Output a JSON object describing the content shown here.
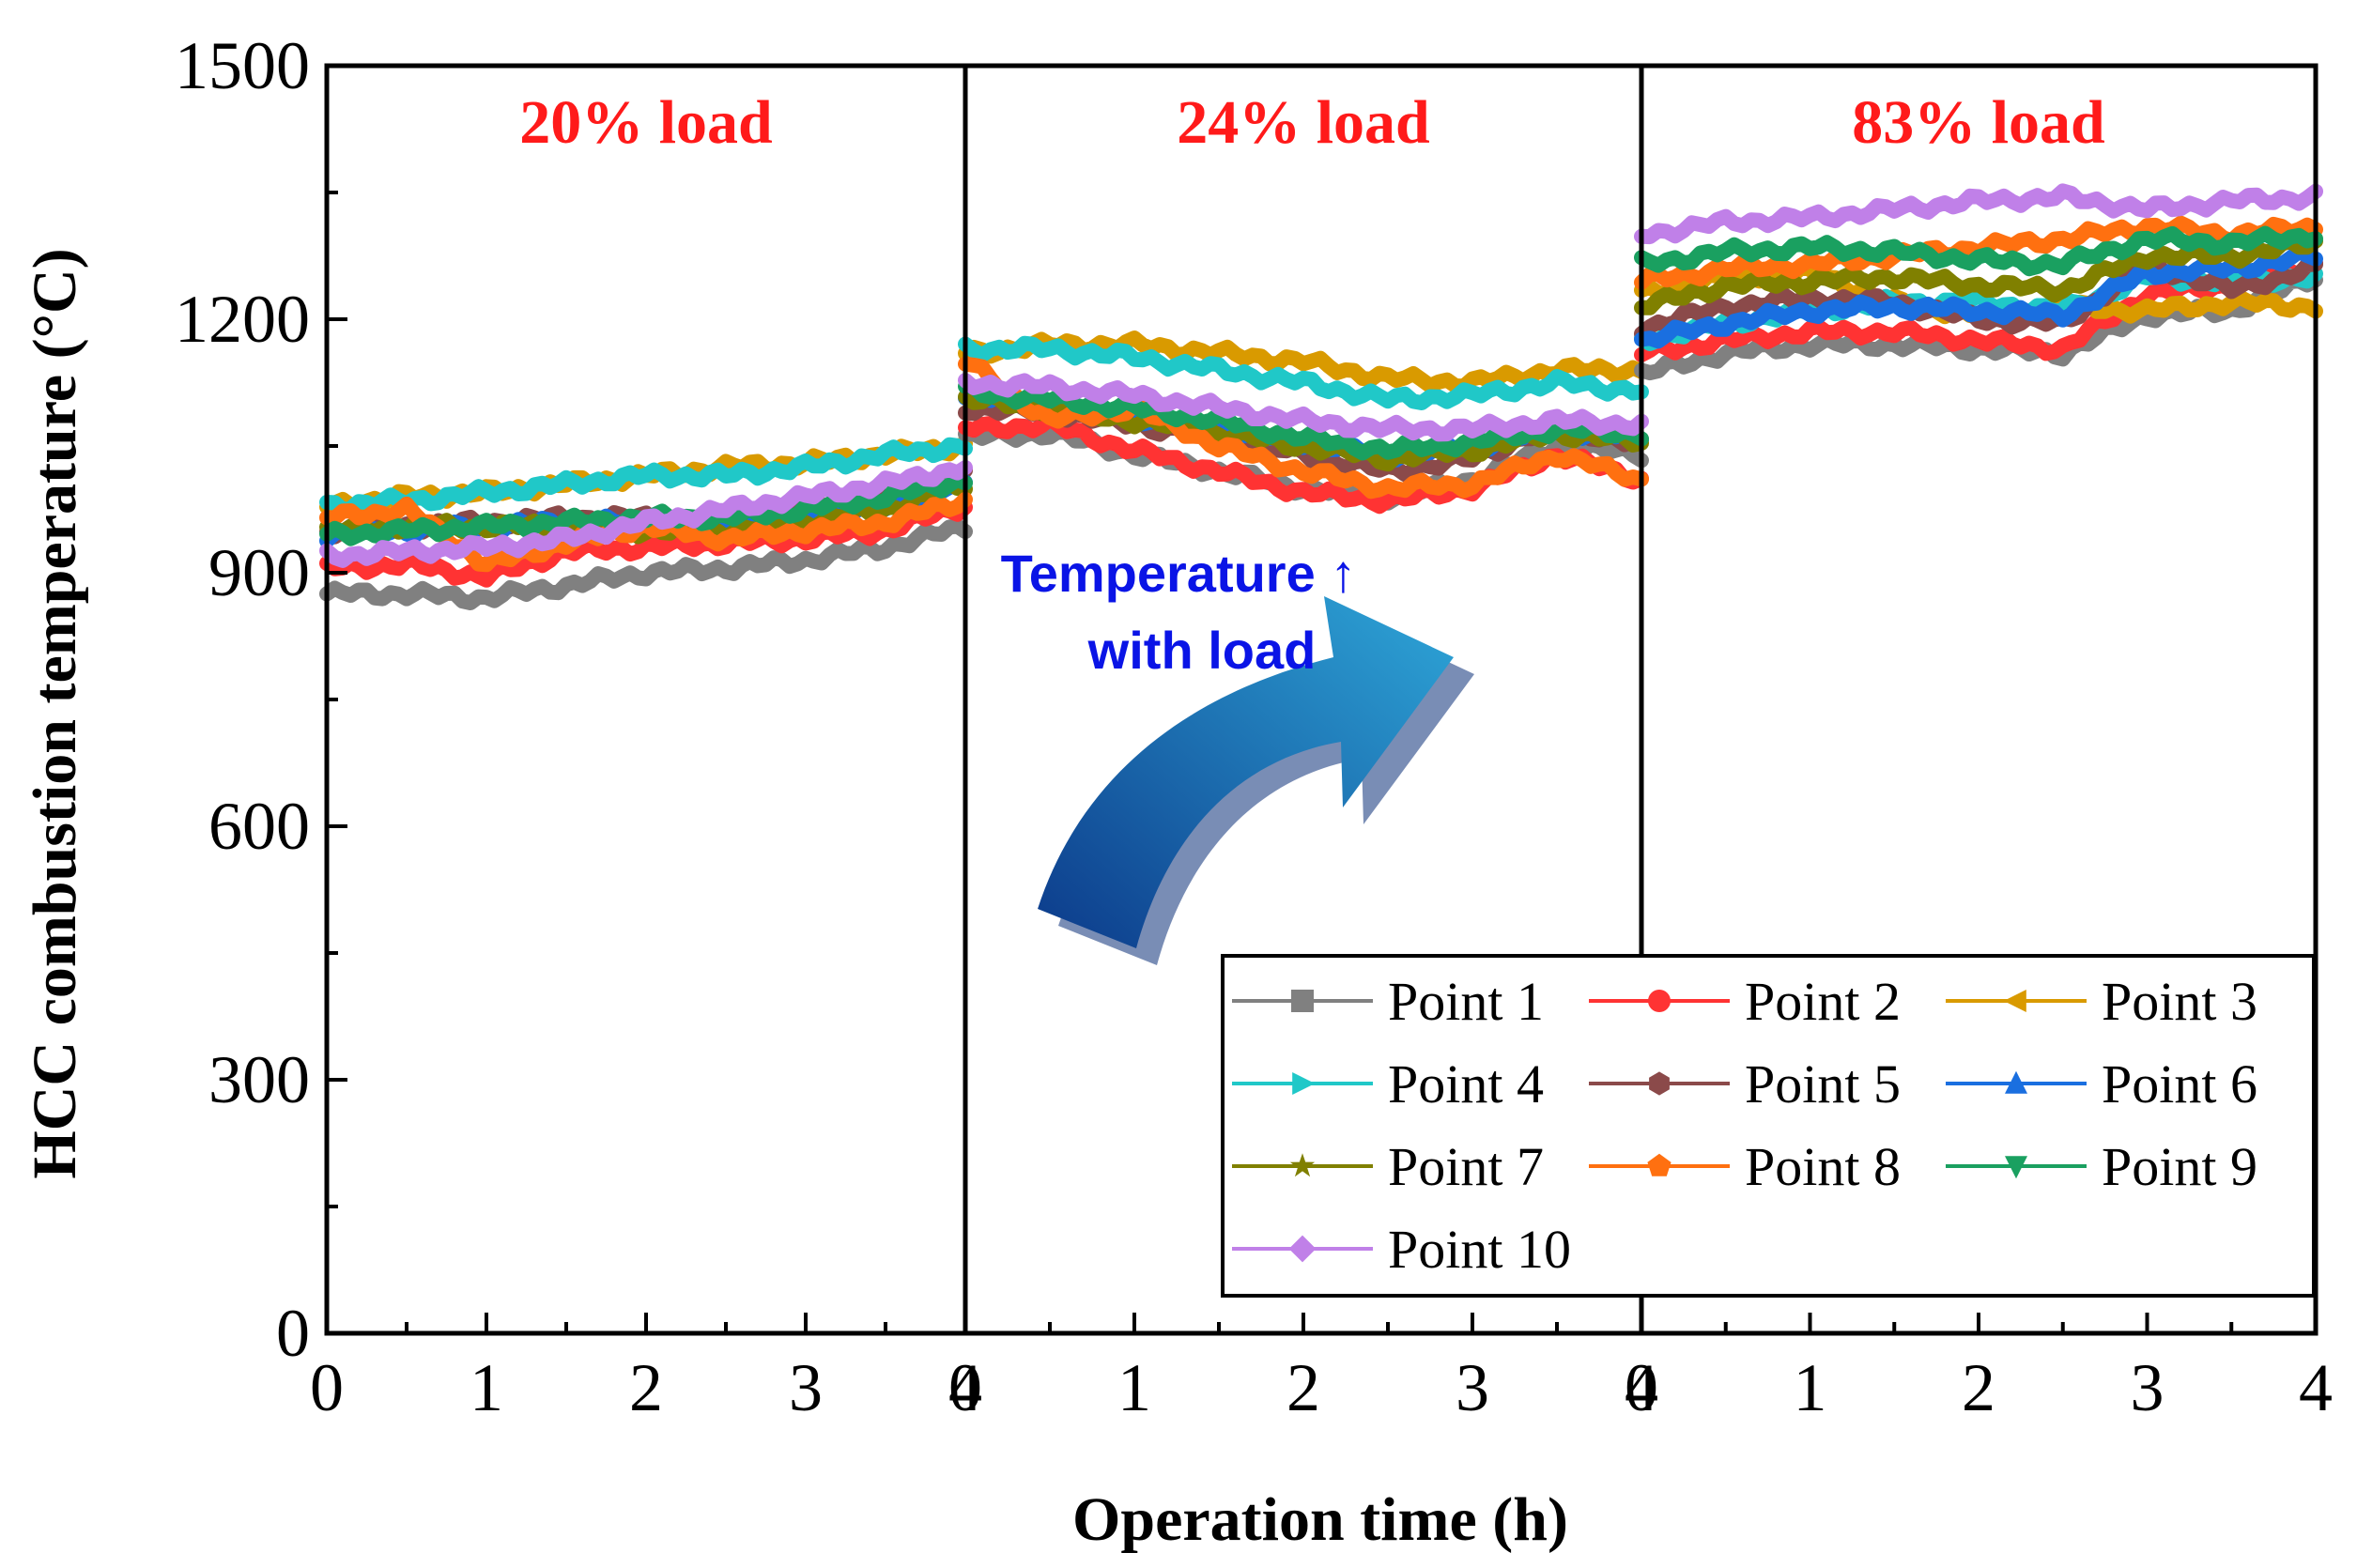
{
  "chart_data": {
    "type": "line",
    "ylabel": "HCC combustion temperature (°C)",
    "xlabel": "Operation time (h)",
    "ylim": [
      0,
      1500
    ],
    "yticks": [
      0,
      300,
      600,
      900,
      1200,
      1500
    ],
    "xlim": [
      0,
      4
    ],
    "xticks": [
      0,
      1,
      2,
      3,
      4
    ],
    "grid": false,
    "legend_position": "bottom-right",
    "annotation": {
      "lines": [
        "Temperature ↑",
        "with load"
      ],
      "color": "#0a14e6",
      "arrow_colors": [
        "#0c3a8a",
        "#2ea6d8"
      ]
    },
    "title_color": "#ff1a1a",
    "panels": [
      {
        "title": "20% load",
        "series": [
          {
            "name": "Point 1",
            "color": "#808080",
            "marker": "square",
            "x": [
              0,
              0.5,
              1,
              1.5,
              2,
              2.5,
              3,
              3.5,
              4
            ],
            "y": [
              875,
              875,
              870,
              885,
              900,
              905,
              915,
              930,
              955
            ]
          },
          {
            "name": "Point 2",
            "color": "#ff3333",
            "marker": "circle",
            "x": [
              0,
              0.5,
              1,
              1.5,
              2,
              2.5,
              3,
              3.5,
              4
            ],
            "y": [
              905,
              910,
              895,
              925,
              930,
              935,
              940,
              950,
              980
            ]
          },
          {
            "name": "Point 3",
            "color": "#d99a00",
            "marker": "triangle-left",
            "x": [
              0,
              0.5,
              1,
              1.5,
              2,
              2.5,
              3,
              3.5,
              4
            ],
            "y": [
              980,
              990,
              995,
              1005,
              1015,
              1025,
              1030,
              1040,
              1050
            ]
          },
          {
            "name": "Point 4",
            "color": "#20c8c8",
            "marker": "triangle-right",
            "x": [
              0,
              0.5,
              1,
              1.5,
              2,
              2.5,
              3,
              3.5,
              4
            ],
            "y": [
              980,
              985,
              995,
              1005,
              1015,
              1015,
              1025,
              1040,
              1050
            ]
          },
          {
            "name": "Point 5",
            "color": "#8b4a4a",
            "marker": "hexagon",
            "x": [
              0,
              0.5,
              1,
              1.5,
              2,
              2.5,
              3,
              3.5,
              4
            ],
            "y": [
              950,
              955,
              960,
              965,
              965,
              960,
              975,
              985,
              1015
            ]
          },
          {
            "name": "Point 6",
            "color": "#1a6fe0",
            "marker": "triangle-up",
            "x": [
              0,
              0.5,
              1,
              1.5,
              2,
              2.5,
              3,
              3.5,
              4
            ],
            "y": [
              945,
              950,
              955,
              960,
              960,
              955,
              965,
              980,
              1005
            ]
          },
          {
            "name": "Point 7",
            "color": "#808000",
            "marker": "star",
            "x": [
              0,
              0.5,
              1,
              1.5,
              2,
              2.5,
              3,
              3.5,
              4
            ],
            "y": [
              950,
              955,
              955,
              955,
              950,
              950,
              960,
              975,
              1005
            ]
          },
          {
            "name": "Point 8",
            "color": "#ff7010",
            "marker": "pentagon",
            "x": [
              0,
              0.5,
              1,
              1.5,
              2,
              2.5,
              3,
              3.5,
              4
            ],
            "y": [
              965,
              975,
              910,
              935,
              955,
              940,
              950,
              960,
              985
            ]
          },
          {
            "name": "Point 9",
            "color": "#1aa060",
            "marker": "triangle-down",
            "x": [
              0,
              0.5,
              1,
              1.5,
              2,
              2.5,
              3,
              3.5,
              4
            ],
            "y": [
              945,
              950,
              955,
              960,
              965,
              965,
              975,
              990,
              1010
            ]
          },
          {
            "name": "Point 10",
            "color": "#c080e8",
            "marker": "diamond",
            "x": [
              0,
              0.5,
              1,
              1.5,
              2,
              2.5,
              3,
              3.5,
              4
            ],
            "y": [
              920,
              925,
              930,
              940,
              960,
              975,
              990,
              1005,
              1025
            ]
          }
        ]
      },
      {
        "title": "24% load",
        "series": [
          {
            "name": "Point 1",
            "color": "#808080",
            "marker": "square",
            "x": [
              0,
              0.5,
              1,
              1.5,
              2,
              2.5,
              3,
              3.5,
              4
            ],
            "y": [
              1060,
              1065,
              1040,
              1020,
              1000,
              990,
              1010,
              1050,
              1040
            ]
          },
          {
            "name": "Point 2",
            "color": "#ff3333",
            "marker": "circle",
            "x": [
              0,
              0.5,
              1,
              1.5,
              2,
              2.5,
              3,
              3.5,
              4
            ],
            "y": [
              1070,
              1075,
              1045,
              1020,
              995,
              985,
              1000,
              1040,
              1010
            ]
          },
          {
            "name": "Point 3",
            "color": "#d99a00",
            "marker": "triangle-left",
            "x": [
              0,
              0.5,
              1,
              1.5,
              2,
              2.5,
              3,
              3.5,
              4
            ],
            "y": [
              1160,
              1170,
              1170,
              1160,
              1150,
              1130,
              1125,
              1140,
              1140
            ]
          },
          {
            "name": "Point 4",
            "color": "#20c8c8",
            "marker": "triangle-right",
            "x": [
              0,
              0.5,
              1,
              1.5,
              2,
              2.5,
              3,
              3.5,
              4
            ],
            "y": [
              1165,
              1165,
              1155,
              1140,
              1125,
              1105,
              1110,
              1125,
              1115
            ]
          },
          {
            "name": "Point 5",
            "color": "#8b4a4a",
            "marker": "hexagon",
            "x": [
              0,
              0.5,
              1,
              1.5,
              2,
              2.5,
              3,
              3.5,
              4
            ],
            "y": [
              1095,
              1090,
              1075,
              1060,
              1040,
              1020,
              1035,
              1075,
              1050
            ]
          },
          {
            "name": "Point 6",
            "color": "#1a6fe0",
            "marker": "triangle-up",
            "x": [
              0,
              0.5,
              1,
              1.5,
              2,
              2.5,
              3,
              3.5,
              4
            ],
            "y": [
              1110,
              1100,
              1085,
              1070,
              1055,
              1040,
              1050,
              1070,
              1060
            ]
          },
          {
            "name": "Point 7",
            "color": "#808000",
            "marker": "star",
            "x": [
              0,
              0.5,
              1,
              1.5,
              2,
              2.5,
              3,
              3.5,
              4
            ],
            "y": [
              1105,
              1095,
              1080,
              1065,
              1050,
              1035,
              1045,
              1065,
              1055
            ]
          },
          {
            "name": "Point 8",
            "color": "#ff7010",
            "marker": "pentagon",
            "x": [
              0,
              0.5,
              1,
              1.5,
              2,
              2.5,
              3,
              3.5,
              4
            ],
            "y": [
              1150,
              1080,
              1095,
              1050,
              1020,
              1000,
              1005,
              1040,
              1010
            ]
          },
          {
            "name": "Point 9",
            "color": "#1aa060",
            "marker": "triangle-down",
            "x": [
              0,
              0.5,
              1,
              1.5,
              2,
              2.5,
              3,
              3.5,
              4
            ],
            "y": [
              1115,
              1105,
              1095,
              1080,
              1060,
              1045,
              1055,
              1070,
              1065
            ]
          },
          {
            "name": "Point 10",
            "color": "#c080e8",
            "marker": "diamond",
            "x": [
              0,
              0.5,
              1,
              1.5,
              2,
              2.5,
              3,
              3.5,
              4
            ],
            "y": [
              1125,
              1120,
              1110,
              1095,
              1080,
              1070,
              1070,
              1080,
              1075
            ]
          }
        ]
      },
      {
        "title": "83% load",
        "series": [
          {
            "name": "Point 1",
            "color": "#808080",
            "marker": "square",
            "x": [
              0,
              0.5,
              1,
              1.5,
              2,
              2.5,
              3,
              3.5,
              4
            ],
            "y": [
              1135,
              1160,
              1170,
              1170,
              1165,
              1160,
              1205,
              1210,
              1250
            ]
          },
          {
            "name": "Point 2",
            "color": "#ff3333",
            "marker": "circle",
            "x": [
              0,
              0.5,
              1,
              1.5,
              2,
              2.5,
              3,
              3.5,
              4
            ],
            "y": [
              1160,
              1175,
              1185,
              1185,
              1175,
              1165,
              1230,
              1240,
              1265
            ]
          },
          {
            "name": "Point 3",
            "color": "#d99a00",
            "marker": "triangle-left",
            "x": [
              0,
              0.5,
              1,
              1.5,
              2,
              2.5,
              3,
              3.5,
              4
            ],
            "y": [
              1230,
              1250,
              1255,
              1220,
              1205,
              1215,
              1210,
              1220,
              1215
            ]
          },
          {
            "name": "Point 4",
            "color": "#20c8c8",
            "marker": "triangle-right",
            "x": [
              0,
              0.5,
              1,
              1.5,
              2,
              2.5,
              3,
              3.5,
              4
            ],
            "y": [
              1175,
              1195,
              1210,
              1220,
              1220,
              1210,
              1250,
              1245,
              1250
            ]
          },
          {
            "name": "Point 5",
            "color": "#8b4a4a",
            "marker": "hexagon",
            "x": [
              0,
              0.5,
              1,
              1.5,
              2,
              2.5,
              3,
              3.5,
              4
            ],
            "y": [
              1190,
              1215,
              1225,
              1220,
              1200,
              1195,
              1265,
              1235,
              1260
            ]
          },
          {
            "name": "Point 6",
            "color": "#1a6fe0",
            "marker": "triangle-up",
            "x": [
              0,
              0.5,
              1,
              1.5,
              2,
              2.5,
              3,
              3.5,
              4
            ],
            "y": [
              1175,
              1195,
              1210,
              1215,
              1210,
              1205,
              1255,
              1260,
              1275
            ]
          },
          {
            "name": "Point 7",
            "color": "#808000",
            "marker": "star",
            "x": [
              0,
              0.5,
              1,
              1.5,
              2,
              2.5,
              3,
              3.5,
              4
            ],
            "y": [
              1215,
              1240,
              1245,
              1250,
              1240,
              1235,
              1275,
              1275,
              1290
            ]
          },
          {
            "name": "Point 8",
            "color": "#ff7010",
            "marker": "pentagon",
            "x": [
              0,
              0.5,
              1,
              1.5,
              2,
              2.5,
              3,
              3.5,
              4
            ],
            "y": [
              1245,
              1260,
              1265,
              1275,
              1285,
              1295,
              1310,
              1300,
              1310
            ]
          },
          {
            "name": "Point 9",
            "color": "#1aa060",
            "marker": "triangle-down",
            "x": [
              0,
              0.5,
              1,
              1.5,
              2,
              2.5,
              3,
              3.5,
              4
            ],
            "y": [
              1265,
              1280,
              1285,
              1280,
              1270,
              1265,
              1295,
              1290,
              1300
            ]
          },
          {
            "name": "Point 10",
            "color": "#c080e8",
            "marker": "diamond",
            "x": [
              0,
              0.5,
              1,
              1.5,
              2,
              2.5,
              3,
              3.5,
              4
            ],
            "y": [
              1300,
              1315,
              1320,
              1330,
              1340,
              1345,
              1330,
              1340,
              1345
            ]
          }
        ]
      }
    ]
  }
}
